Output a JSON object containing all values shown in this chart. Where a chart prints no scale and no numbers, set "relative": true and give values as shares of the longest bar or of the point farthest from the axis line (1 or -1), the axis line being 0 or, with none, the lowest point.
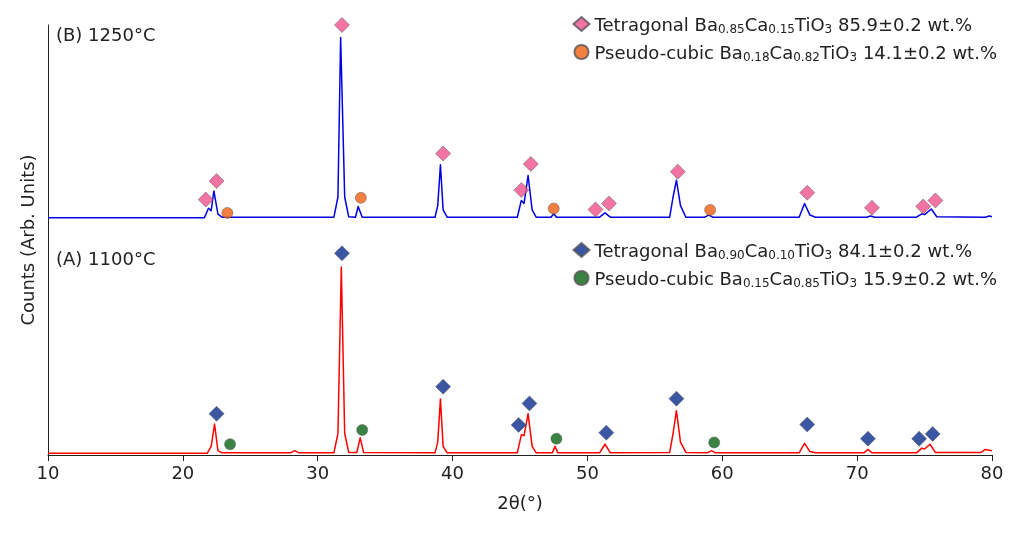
{
  "chart_data": {
    "type": "line",
    "relative": true,
    "xlabel": "2θ(°)",
    "ylabel": "Counts (Arb. Units)",
    "xlim": [
      10,
      80
    ],
    "xticks": [
      10,
      20,
      30,
      40,
      50,
      60,
      70,
      80
    ],
    "grid": false,
    "legend": "top right",
    "annotations": [
      "(B) 1250°C",
      "(A) 1100°C"
    ],
    "series": [
      {
        "color": "#0000e0",
        "marker": "none",
        "x": [
          10,
          21.6,
          21.9,
          22.1,
          22.3,
          22.6,
          22.9,
          31.2,
          31.5,
          31.7,
          32.0,
          32.3,
          32.8,
          33.0,
          33.3,
          38.7,
          38.9,
          39.1,
          39.3,
          39.6,
          44.8,
          45.1,
          45.3,
          45.6,
          45.9,
          46.2,
          47.3,
          47.5,
          47.7,
          50.9,
          51.3,
          51.7,
          56.1,
          56.35,
          56.6,
          56.9,
          57.3,
          58.7,
          59.0,
          59.3,
          65.7,
          66.1,
          66.5,
          66.9,
          70.7,
          71.0,
          71.3,
          74.4,
          74.8,
          75.0,
          75.5,
          75.9,
          79.5,
          79.8,
          80
        ],
        "values": [
          0.552,
          0.552,
          0.574,
          0.568,
          0.614,
          0.56,
          0.553,
          0.553,
          0.6,
          0.971,
          0.6,
          0.554,
          0.553,
          0.578,
          0.553,
          0.553,
          0.58,
          0.675,
          0.57,
          0.553,
          0.553,
          0.592,
          0.585,
          0.65,
          0.57,
          0.553,
          0.553,
          0.561,
          0.553,
          0.553,
          0.563,
          0.553,
          0.553,
          0.6,
          0.639,
          0.58,
          0.553,
          0.553,
          0.558,
          0.553,
          0.553,
          0.585,
          0.558,
          0.553,
          0.553,
          0.556,
          0.553,
          0.553,
          0.561,
          0.559,
          0.572,
          0.554,
          0.553,
          0.556,
          0.554
        ]
      },
      {
        "type": "scatter",
        "name": "Tetragonal Ba$_{0.85}$Ca$_{0.15}$TiO$_{3}$ 85.9±0.2 wt.%",
        "color": "#f0508c",
        "marker": "diamond",
        "x": [
          21.7,
          22.5,
          31.8,
          39.3,
          45.1,
          45.8,
          50.6,
          51.6,
          56.7,
          66.3,
          71.1,
          74.9,
          75.8
        ],
        "values": [
          0.594,
          0.637,
          1.0,
          0.701,
          0.616,
          0.677,
          0.571,
          0.585,
          0.659,
          0.61,
          0.575,
          0.578,
          0.592
        ]
      },
      {
        "type": "scatter",
        "name": "Pseudo-cubic Ba$_{0.18}$Ca$_{0.82}$TiO$_{3}$ 14.1±0.2 wt.%",
        "color": "#f06010",
        "marker": "circle",
        "x": [
          23.3,
          33.2,
          47.5,
          59.1
        ],
        "values": [
          0.563,
          0.598,
          0.573,
          0.57
        ]
      },
      {
        "color": "#ff0000",
        "marker": "none",
        "x": [
          10,
          21.8,
          22.1,
          22.35,
          22.6,
          22.9,
          28,
          28.3,
          28.6,
          31.2,
          31.5,
          31.75,
          32.0,
          32.3,
          32.9,
          33.15,
          33.4,
          38.7,
          38.9,
          39.1,
          39.3,
          39.6,
          44.8,
          45.1,
          45.3,
          45.6,
          45.9,
          46.2,
          47.4,
          47.6,
          47.8,
          50.9,
          51.3,
          51.7,
          56.1,
          56.35,
          56.6,
          56.9,
          57.3,
          58.9,
          59.2,
          59.5,
          65.7,
          66.1,
          66.5,
          66.9,
          70.5,
          70.8,
          71.1,
          74.4,
          74.8,
          75.0,
          75.4,
          75.8,
          79.2,
          79.5,
          80
        ],
        "values": [
          0.004,
          0.004,
          0.02,
          0.072,
          0.01,
          0.005,
          0.005,
          0.01,
          0.005,
          0.005,
          0.05,
          0.437,
          0.05,
          0.006,
          0.006,
          0.04,
          0.006,
          0.005,
          0.03,
          0.13,
          0.02,
          0.005,
          0.005,
          0.047,
          0.045,
          0.096,
          0.02,
          0.005,
          0.005,
          0.02,
          0.005,
          0.005,
          0.025,
          0.005,
          0.006,
          0.05,
          0.103,
          0.03,
          0.006,
          0.005,
          0.01,
          0.005,
          0.005,
          0.027,
          0.008,
          0.005,
          0.005,
          0.013,
          0.005,
          0.005,
          0.016,
          0.014,
          0.025,
          0.006,
          0.006,
          0.013,
          0.01
        ]
      },
      {
        "type": "scatter",
        "name": "Tetragonal Ba$_{0.90}$Ca$_{0.10}$TiO$_{3}$ 84.1±0.2 wt.%",
        "color": "#0a2d8c",
        "marker": "diamond",
        "x": [
          22.5,
          31.8,
          39.3,
          44.9,
          45.7,
          51.4,
          56.6,
          66.3,
          70.8,
          74.6,
          75.6
        ],
        "values": [
          0.096,
          0.469,
          0.159,
          0.07,
          0.12,
          0.052,
          0.131,
          0.071,
          0.038,
          0.038,
          0.049
        ]
      },
      {
        "type": "scatter",
        "name": "Pseudo-cubic Ba$_{0.15}$Ca$_{0.85}$TiO$_{3}$ 15.9±0.2 wt.%",
        "color": "#0a6414",
        "marker": "circle",
        "x": [
          23.5,
          33.3,
          47.7,
          59.4
        ],
        "values": [
          0.025,
          0.058,
          0.038,
          0.029
        ]
      }
    ]
  }
}
